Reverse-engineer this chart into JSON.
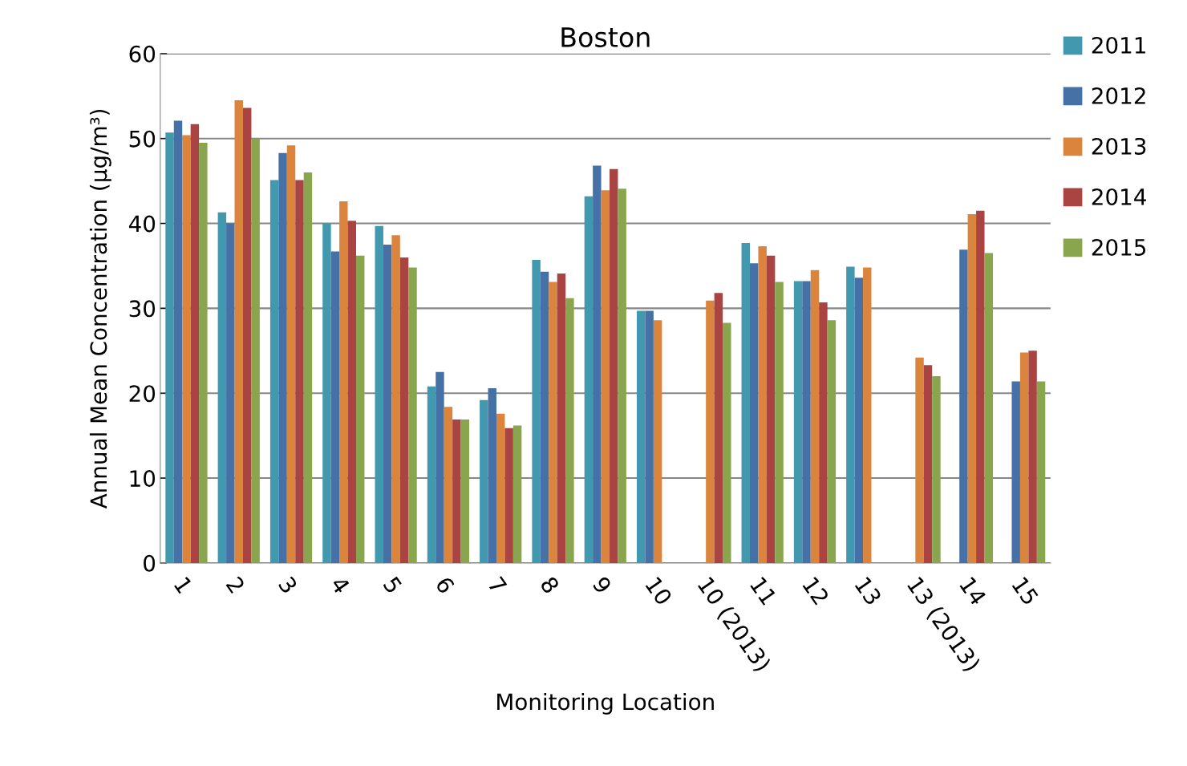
{
  "chart_data": {
    "type": "bar",
    "title": "Boston",
    "xlabel": "Monitoring Location",
    "ylabel": "Annual Mean Concentration (µg/m³)",
    "categories": [
      "1",
      "2",
      "3",
      "4",
      "5",
      "6",
      "7",
      "8",
      "9",
      "10",
      "10 (2013)",
      "11",
      "12",
      "13",
      "13 (2013)",
      "14",
      "15"
    ],
    "series": [
      {
        "name": "2011",
        "color": "#4198af",
        "values": [
          50.7,
          41.3,
          45.1,
          40.0,
          39.7,
          20.8,
          19.2,
          35.7,
          43.2,
          29.7,
          null,
          37.7,
          33.2,
          34.9,
          null,
          null,
          null
        ]
      },
      {
        "name": "2012",
        "color": "#4571a7",
        "values": [
          52.1,
          40.0,
          48.3,
          36.7,
          37.5,
          22.5,
          20.6,
          34.3,
          46.8,
          29.7,
          null,
          35.3,
          33.2,
          33.6,
          null,
          36.9,
          21.4
        ]
      },
      {
        "name": "2013",
        "color": "#db843d",
        "values": [
          50.4,
          54.5,
          49.2,
          42.6,
          38.6,
          18.4,
          17.6,
          33.1,
          43.9,
          28.6,
          30.9,
          37.3,
          34.5,
          34.8,
          24.2,
          41.1,
          24.8
        ]
      },
      {
        "name": "2014",
        "color": "#a94442",
        "values": [
          51.7,
          53.6,
          45.1,
          40.3,
          36.0,
          16.9,
          15.9,
          34.1,
          46.4,
          null,
          31.8,
          36.2,
          30.7,
          null,
          23.3,
          41.5,
          25.0
        ]
      },
      {
        "name": "2015",
        "color": "#89a54e",
        "values": [
          49.5,
          50.0,
          46.0,
          36.2,
          34.8,
          16.9,
          16.2,
          31.2,
          44.1,
          null,
          28.3,
          33.1,
          28.6,
          null,
          22.0,
          36.5,
          21.4
        ]
      }
    ],
    "ylim": [
      0,
      60
    ],
    "yticks": [
      0,
      10,
      20,
      30,
      40,
      50,
      60
    ],
    "grid": "y",
    "legend": "top right"
  }
}
